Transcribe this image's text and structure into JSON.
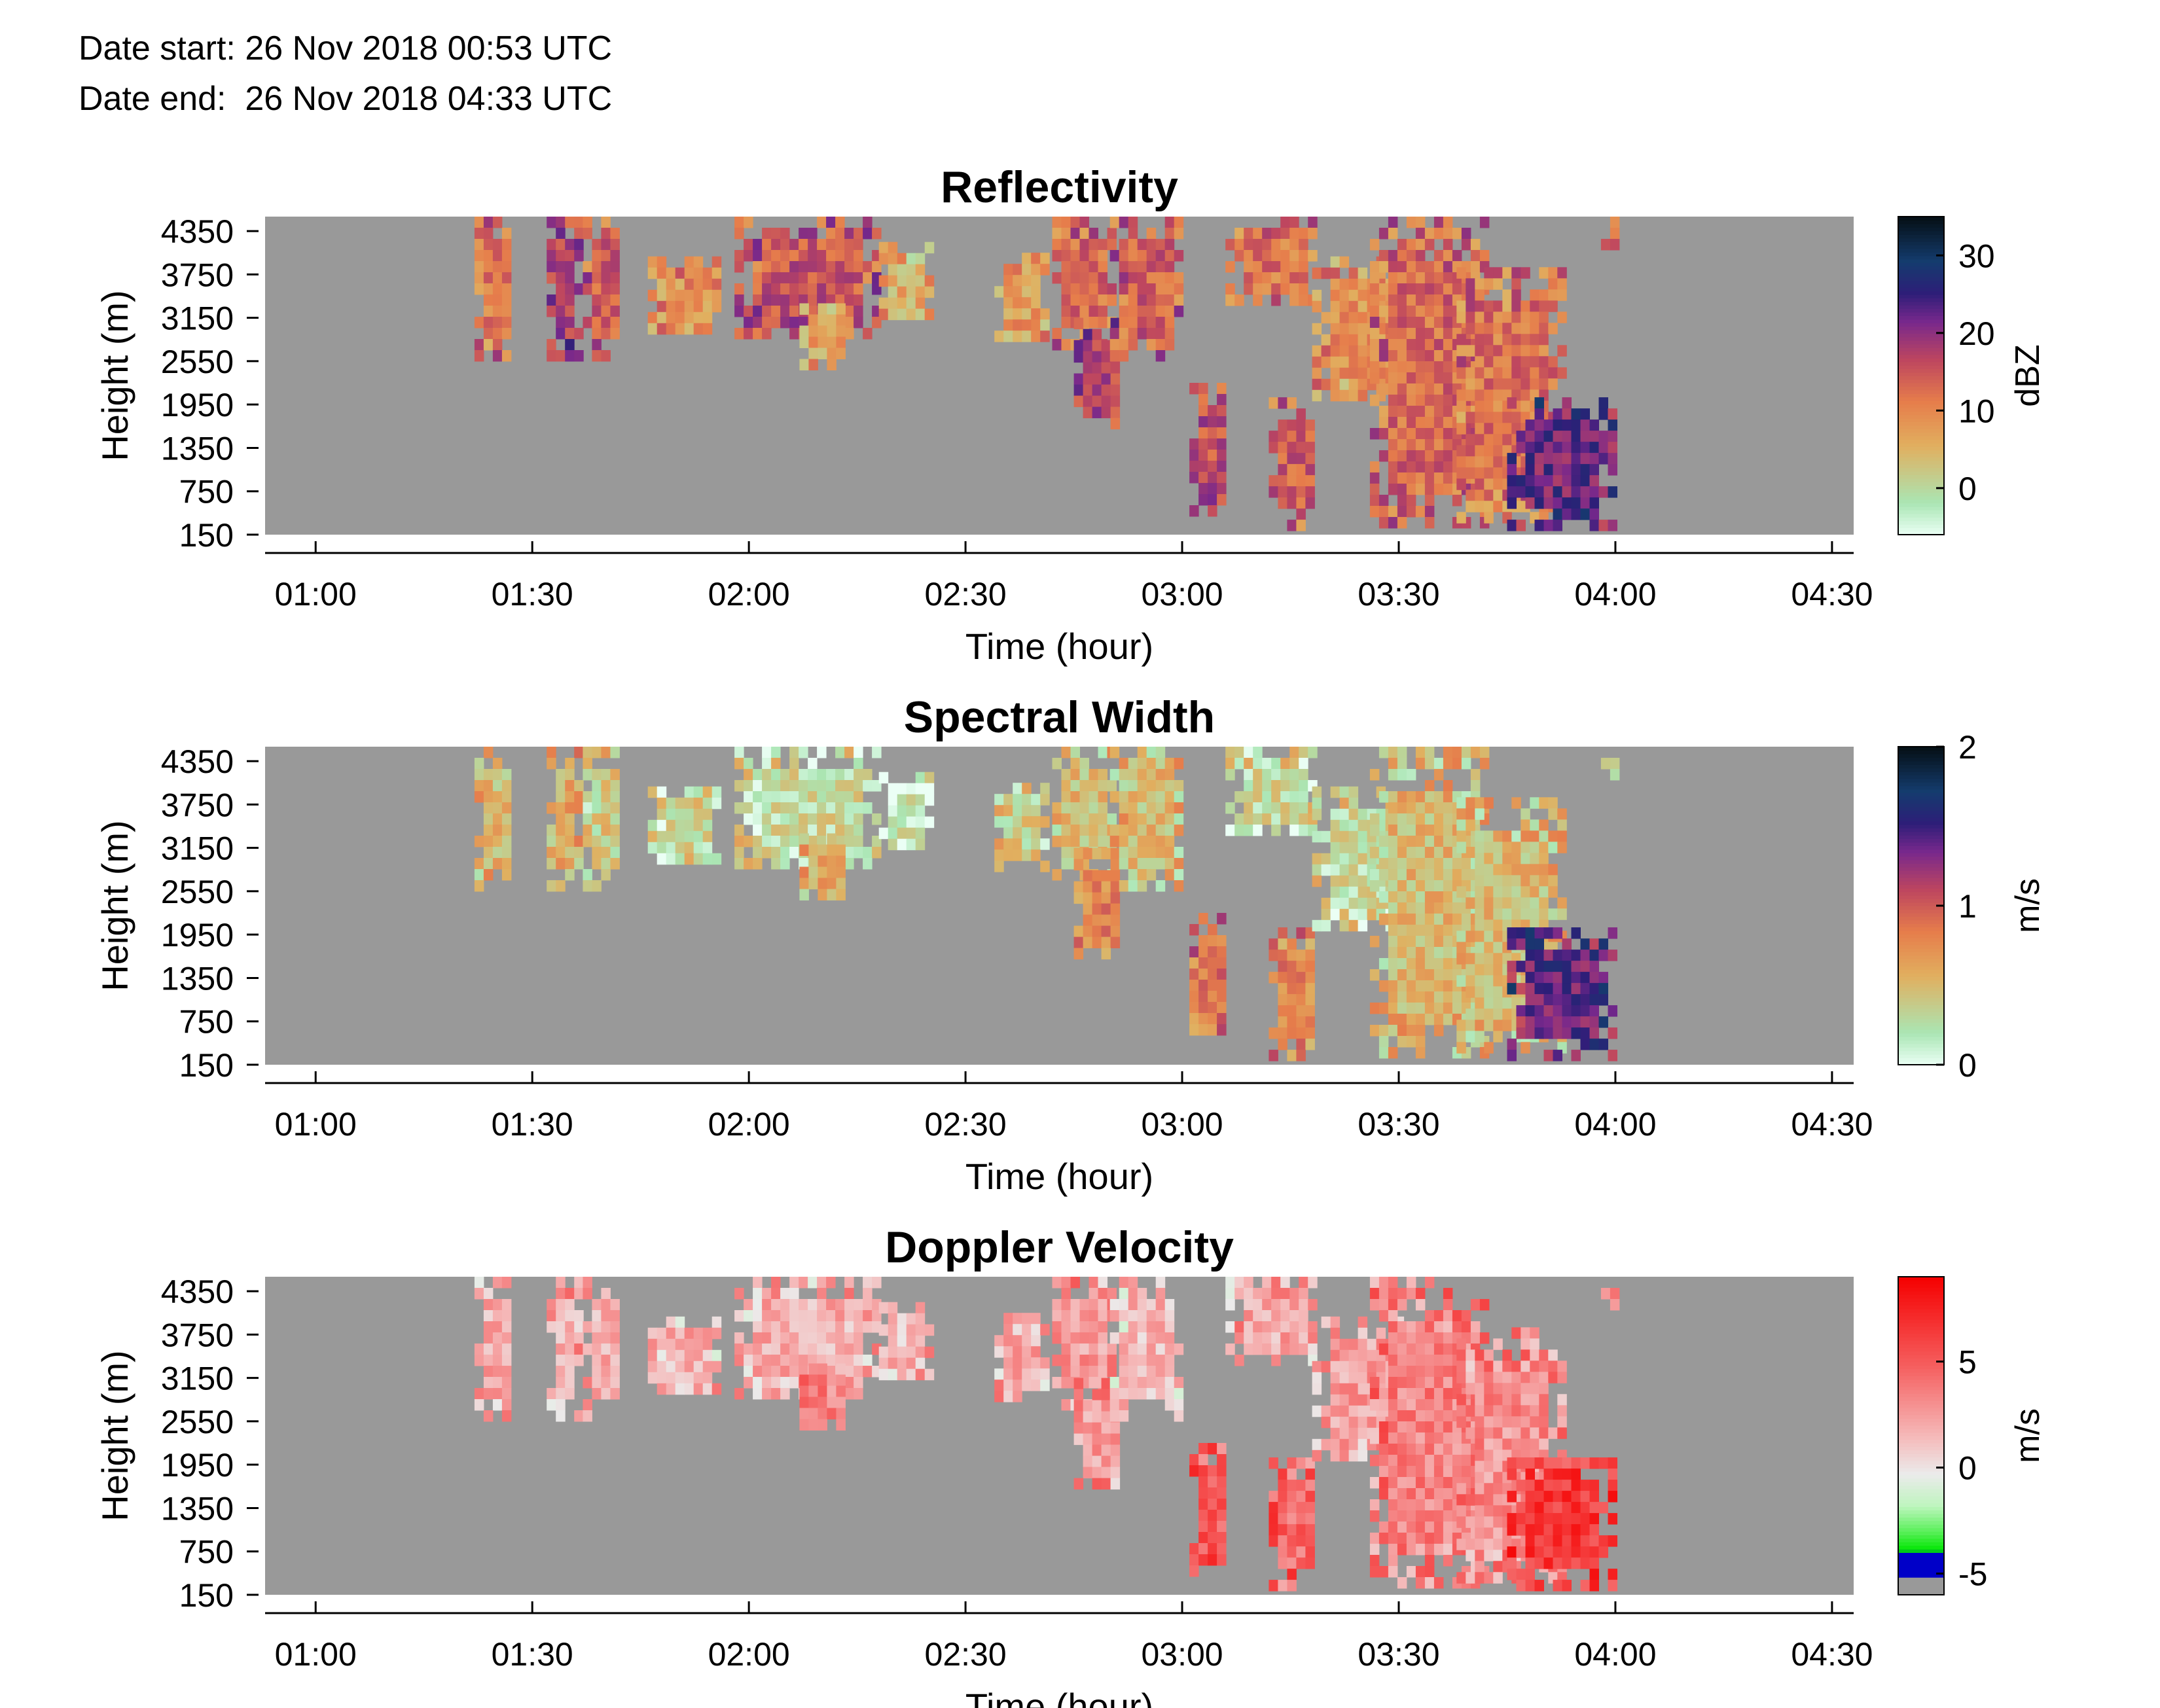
{
  "header": {
    "date_start": "Date start: 26 Nov 2018 00:53 UTC",
    "date_end": "Date end:  26 Nov 2018 04:33 UTC"
  },
  "chart_data": [
    {
      "type": "heatmap",
      "title": "Reflectivity",
      "xlabel": "Time (hour)",
      "ylabel": "Height (m)",
      "x_ticks": [
        "01:00",
        "01:30",
        "02:00",
        "02:30",
        "03:00",
        "03:30",
        "04:00",
        "04:30"
      ],
      "y_ticks": [
        "150",
        "750",
        "1350",
        "1950",
        "2550",
        "3150",
        "3750",
        "4350"
      ],
      "xlim": [
        "00:53",
        "04:33"
      ],
      "ylim": [
        150,
        4550
      ],
      "colorbar": {
        "label": "dBZ",
        "ticks": [
          "0",
          "10",
          "20",
          "30"
        ],
        "tick_values": [
          0,
          10,
          20,
          30
        ],
        "range": [
          -6,
          35
        ],
        "colormap": "reflectivity"
      },
      "background_color": "#999999",
      "echoes": [
        {
          "t0": "01:22",
          "t1": "01:27",
          "h0": 2650,
          "h1": 4550,
          "value": 12
        },
        {
          "t0": "01:32",
          "t1": "01:36",
          "h0": 2700,
          "h1": 4550,
          "value": 18
        },
        {
          "t0": "01:37",
          "t1": "01:42",
          "h0": 2700,
          "h1": 4550,
          "value": 14
        },
        {
          "t0": "01:46",
          "t1": "01:56",
          "h0": 2950,
          "h1": 4000,
          "value": 9
        },
        {
          "t0": "01:58",
          "t1": "02:18",
          "h0": 2950,
          "h1": 4550,
          "value": 15
        },
        {
          "t0": "02:07",
          "t1": "02:13",
          "h0": 2550,
          "h1": 3350,
          "value": 7
        },
        {
          "t0": "02:18",
          "t1": "02:25",
          "h0": 3150,
          "h1": 4200,
          "value": 6
        },
        {
          "t0": "02:34",
          "t1": "02:41",
          "h0": 2950,
          "h1": 4050,
          "value": 8
        },
        {
          "t0": "02:42",
          "t1": "02:50",
          "h0": 2850,
          "h1": 4550,
          "value": 13
        },
        {
          "t0": "02:45",
          "t1": "02:51",
          "h0": 1650,
          "h1": 3150,
          "value": 17
        },
        {
          "t0": "02:50",
          "t1": "03:00",
          "h0": 2650,
          "h1": 4550,
          "value": 14
        },
        {
          "t0": "03:01",
          "t1": "03:06",
          "h0": 450,
          "h1": 2250,
          "value": 16
        },
        {
          "t0": "03:06",
          "t1": "03:18",
          "h0": 3350,
          "h1": 4550,
          "value": 12
        },
        {
          "t0": "03:12",
          "t1": "03:18",
          "h0": 350,
          "h1": 2050,
          "value": 14
        },
        {
          "t0": "03:18",
          "t1": "03:30",
          "h0": 2050,
          "h1": 4000,
          "value": 9
        },
        {
          "t0": "03:26",
          "t1": "03:42",
          "h0": 350,
          "h1": 4550,
          "value": 13
        },
        {
          "t0": "03:38",
          "t1": "03:52",
          "h0": 350,
          "h1": 3850,
          "value": 12
        },
        {
          "t0": "03:45",
          "t1": "03:59",
          "h0": 350,
          "h1": 2050,
          "value": 22
        },
        {
          "t0": "03:58",
          "t1": "04:00",
          "h0": 4100,
          "h1": 4550,
          "value": 12
        }
      ]
    },
    {
      "type": "heatmap",
      "title": "Spectral Width",
      "xlabel": "Time (hour)",
      "ylabel": "Height (m)",
      "x_ticks": [
        "01:00",
        "01:30",
        "02:00",
        "02:30",
        "03:00",
        "03:30",
        "04:00",
        "04:30"
      ],
      "y_ticks": [
        "150",
        "750",
        "1350",
        "1950",
        "2550",
        "3150",
        "3750",
        "4350"
      ],
      "xlim": [
        "00:53",
        "04:33"
      ],
      "ylim": [
        150,
        4550
      ],
      "colorbar": {
        "label": "m/s",
        "ticks": [
          "0",
          "1",
          "2"
        ],
        "tick_values": [
          0,
          1,
          2
        ],
        "range": [
          0,
          2
        ],
        "colormap": "reflectivity"
      },
      "background_color": "#999999",
      "echoes": [
        {
          "t0": "01:22",
          "t1": "01:27",
          "h0": 2650,
          "h1": 4550,
          "value": 0.5
        },
        {
          "t0": "01:32",
          "t1": "01:36",
          "h0": 2700,
          "h1": 4550,
          "value": 0.6
        },
        {
          "t0": "01:37",
          "t1": "01:42",
          "h0": 2700,
          "h1": 4550,
          "value": 0.4
        },
        {
          "t0": "01:46",
          "t1": "01:56",
          "h0": 2950,
          "h1": 4000,
          "value": 0.3
        },
        {
          "t0": "01:58",
          "t1": "02:18",
          "h0": 2950,
          "h1": 4550,
          "value": 0.3
        },
        {
          "t0": "02:07",
          "t1": "02:13",
          "h0": 2550,
          "h1": 3350,
          "value": 0.6
        },
        {
          "t0": "02:18",
          "t1": "02:25",
          "h0": 3150,
          "h1": 4200,
          "value": 0.2
        },
        {
          "t0": "02:34",
          "t1": "02:41",
          "h0": 2950,
          "h1": 4050,
          "value": 0.4
        },
        {
          "t0": "02:42",
          "t1": "02:50",
          "h0": 2850,
          "h1": 4550,
          "value": 0.5
        },
        {
          "t0": "02:45",
          "t1": "02:51",
          "h0": 1650,
          "h1": 3150,
          "value": 0.8
        },
        {
          "t0": "02:50",
          "t1": "03:00",
          "h0": 2650,
          "h1": 4550,
          "value": 0.5
        },
        {
          "t0": "03:01",
          "t1": "03:06",
          "h0": 450,
          "h1": 2250,
          "value": 0.9
        },
        {
          "t0": "03:06",
          "t1": "03:18",
          "h0": 3350,
          "h1": 4550,
          "value": 0.3
        },
        {
          "t0": "03:12",
          "t1": "03:18",
          "h0": 350,
          "h1": 2050,
          "value": 0.8
        },
        {
          "t0": "03:18",
          "t1": "03:30",
          "h0": 2050,
          "h1": 4000,
          "value": 0.3
        },
        {
          "t0": "03:26",
          "t1": "03:42",
          "h0": 350,
          "h1": 4550,
          "value": 0.5
        },
        {
          "t0": "03:38",
          "t1": "03:52",
          "h0": 350,
          "h1": 3850,
          "value": 0.5
        },
        {
          "t0": "03:45",
          "t1": "03:59",
          "h0": 350,
          "h1": 2050,
          "value": 1.4
        },
        {
          "t0": "03:58",
          "t1": "04:00",
          "h0": 4100,
          "h1": 4550,
          "value": 0.3
        }
      ]
    },
    {
      "type": "heatmap",
      "title": "Doppler Velocity",
      "xlabel": "Time (hour)",
      "ylabel": "Height (m)",
      "x_ticks": [
        "01:00",
        "01:30",
        "02:00",
        "02:30",
        "03:00",
        "03:30",
        "04:00",
        "04:30"
      ],
      "y_ticks": [
        "150",
        "750",
        "1350",
        "1950",
        "2550",
        "3150",
        "3750",
        "4350"
      ],
      "xlim": [
        "00:53",
        "04:33"
      ],
      "ylim": [
        150,
        4550
      ],
      "colorbar": {
        "label": "m/s",
        "ticks": [
          "-5",
          "0",
          "5"
        ],
        "tick_values": [
          -5,
          0,
          5
        ],
        "range": [
          -6,
          9
        ],
        "colormap": "doppler"
      },
      "background_color": "#999999",
      "echoes": [
        {
          "t0": "01:22",
          "t1": "01:27",
          "h0": 2650,
          "h1": 4550,
          "value": 2
        },
        {
          "t0": "01:32",
          "t1": "01:36",
          "h0": 2700,
          "h1": 4550,
          "value": 2
        },
        {
          "t0": "01:37",
          "t1": "01:42",
          "h0": 2700,
          "h1": 4550,
          "value": 2
        },
        {
          "t0": "01:46",
          "t1": "01:56",
          "h0": 2950,
          "h1": 4000,
          "value": 1.5
        },
        {
          "t0": "01:58",
          "t1": "02:18",
          "h0": 2950,
          "h1": 4550,
          "value": 1.8
        },
        {
          "t0": "02:07",
          "t1": "02:13",
          "h0": 2550,
          "h1": 3350,
          "value": 3.5
        },
        {
          "t0": "02:18",
          "t1": "02:25",
          "h0": 3150,
          "h1": 4200,
          "value": 1.5
        },
        {
          "t0": "02:34",
          "t1": "02:41",
          "h0": 2950,
          "h1": 4050,
          "value": 2
        },
        {
          "t0": "02:42",
          "t1": "02:50",
          "h0": 2850,
          "h1": 4550,
          "value": 2.5
        },
        {
          "t0": "02:45",
          "t1": "02:51",
          "h0": 1650,
          "h1": 3150,
          "value": 2.5
        },
        {
          "t0": "02:50",
          "t1": "03:00",
          "h0": 2650,
          "h1": 4550,
          "value": 1.5
        },
        {
          "t0": "03:01",
          "t1": "03:06",
          "h0": 450,
          "h1": 2250,
          "value": 5
        },
        {
          "t0": "03:06",
          "t1": "03:18",
          "h0": 3350,
          "h1": 4550,
          "value": 2
        },
        {
          "t0": "03:12",
          "t1": "03:18",
          "h0": 350,
          "h1": 2050,
          "value": 4.5
        },
        {
          "t0": "03:18",
          "t1": "03:30",
          "h0": 2050,
          "h1": 4000,
          "value": 2.5
        },
        {
          "t0": "03:26",
          "t1": "03:42",
          "h0": 350,
          "h1": 4550,
          "value": 3.5
        },
        {
          "t0": "03:38",
          "t1": "03:52",
          "h0": 350,
          "h1": 3850,
          "value": 3
        },
        {
          "t0": "03:45",
          "t1": "03:59",
          "h0": 350,
          "h1": 2050,
          "value": 6.5
        },
        {
          "t0": "03:58",
          "t1": "04:00",
          "h0": 4100,
          "h1": 4550,
          "value": 3
        }
      ]
    }
  ]
}
